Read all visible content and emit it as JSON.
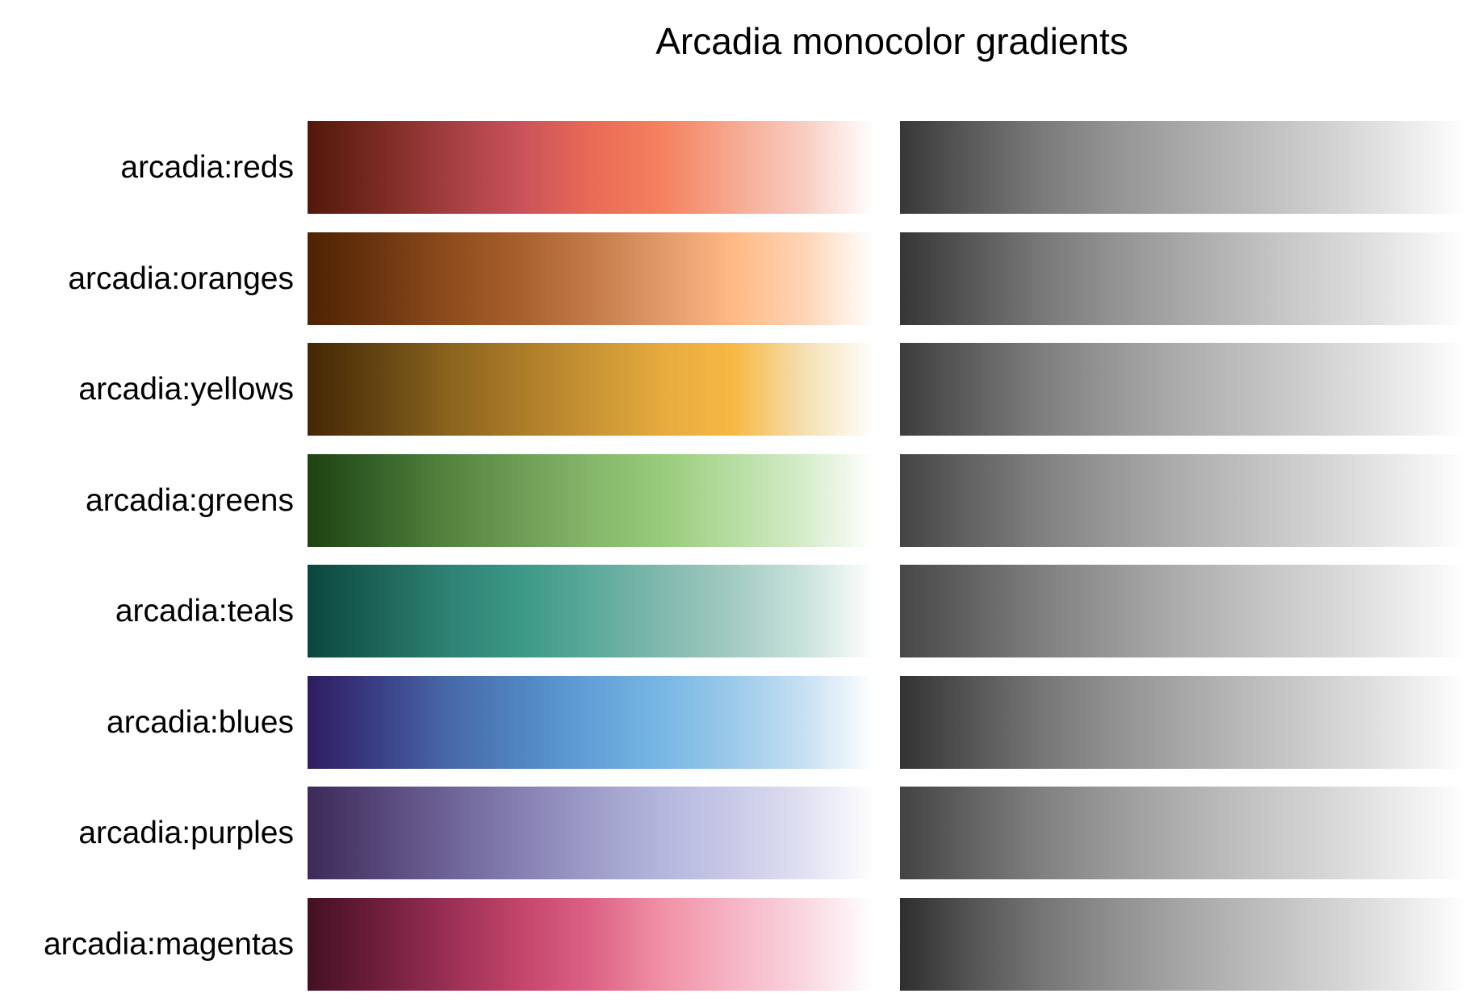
{
  "chart_data": {
    "type": "colormap-swatches",
    "title": "Arcadia monocolor gradients",
    "xlabel": "",
    "ylabel": "",
    "grid": false,
    "panels": [
      "color",
      "grayscale"
    ],
    "colormaps": [
      {
        "name": "arcadia:reds",
        "stops": [
          "#52180a",
          "#7a2a22",
          "#a33e40",
          "#c9525a",
          "#e96a56",
          "#f4815f",
          "#f6a88f",
          "#f8cdc2",
          "#ffffff"
        ],
        "gray_stops": [
          "#383838",
          "#5a5a5a",
          "#7a7a7a",
          "#939393",
          "#a8a8a8",
          "#bcbcbc",
          "#d0d0d0",
          "#e6e6e6",
          "#ffffff"
        ]
      },
      {
        "name": "arcadia:oranges",
        "stops": [
          "#4f2200",
          "#6b3610",
          "#8e4c1c",
          "#a8602d",
          "#c47b49",
          "#e1996a",
          "#ffb984",
          "#fed4b6",
          "#ffffff"
        ],
        "gray_stops": [
          "#363636",
          "#575757",
          "#787878",
          "#929292",
          "#a8a8a8",
          "#bebebe",
          "#d2d2d2",
          "#e7e7e7",
          "#ffffff"
        ]
      },
      {
        "name": "arcadia:yellows",
        "stops": [
          "#442704",
          "#634412",
          "#8a631e",
          "#ab7b28",
          "#c89434",
          "#e6aa3e",
          "#f7b843",
          "#f5dfb0",
          "#ffffff"
        ],
        "gray_stops": [
          "#3c3c3c",
          "#5e5e5e",
          "#7e7e7e",
          "#979797",
          "#adadad",
          "#c0c0c0",
          "#d4d4d4",
          "#e8e8e8",
          "#ffffff"
        ]
      },
      {
        "name": "arcadia:greens",
        "stops": [
          "#1e4112",
          "#36632a",
          "#55843f",
          "#6e9d55",
          "#85b66a",
          "#98cb7a",
          "#b6dda1",
          "#d5ecca",
          "#ffffff"
        ],
        "gray_stops": [
          "#444444",
          "#636363",
          "#808080",
          "#989898",
          "#aeaeae",
          "#c1c1c1",
          "#d5d5d5",
          "#e9e9e9",
          "#ffffff"
        ]
      },
      {
        "name": "arcadia:teals",
        "stops": [
          "#09473e",
          "#1d6358",
          "#2e8273",
          "#3c9886",
          "#5ba99a",
          "#80b9ae",
          "#a3cbc2",
          "#c9e2dc",
          "#ffffff"
        ],
        "gray_stops": [
          "#474747",
          "#626262",
          "#7f7f7f",
          "#979797",
          "#aeaeae",
          "#c2c2c2",
          "#d5d5d5",
          "#e9e9e9",
          "#ffffff"
        ]
      },
      {
        "name": "arcadia:blues",
        "stops": [
          "#2f1c60",
          "#3a3f86",
          "#4869a8",
          "#4f85c1",
          "#62a0d8",
          "#77b7e4",
          "#9bcaea",
          "#c6e0f2",
          "#ffffff"
        ],
        "gray_stops": [
          "#333333",
          "#555555",
          "#767676",
          "#909090",
          "#a7a7a7",
          "#bcbcbc",
          "#d1d1d1",
          "#e6e6e6",
          "#ffffff"
        ]
      },
      {
        "name": "arcadia:purples",
        "stops": [
          "#3c2a58",
          "#554678",
          "#6e6396",
          "#8580b1",
          "#9d9cc8",
          "#b4b6dd",
          "#c9cae8",
          "#e0e0f2",
          "#ffffff"
        ],
        "gray_stops": [
          "#434343",
          "#626262",
          "#808080",
          "#999999",
          "#afafaf",
          "#c3c3c3",
          "#d6d6d6",
          "#eaeaea",
          "#ffffff"
        ]
      },
      {
        "name": "arcadia:magentas",
        "stops": [
          "#431022",
          "#6e1e3c",
          "#9a2f55",
          "#c34569",
          "#dc6285",
          "#f090a5",
          "#f6b4c4",
          "#f9d6e0",
          "#ffffff"
        ],
        "gray_stops": [
          "#2e2e2e",
          "#545454",
          "#757575",
          "#8f8f8f",
          "#a6a6a6",
          "#bbbbbb",
          "#d0d0d0",
          "#e6e6e6",
          "#ffffff"
        ]
      }
    ]
  }
}
